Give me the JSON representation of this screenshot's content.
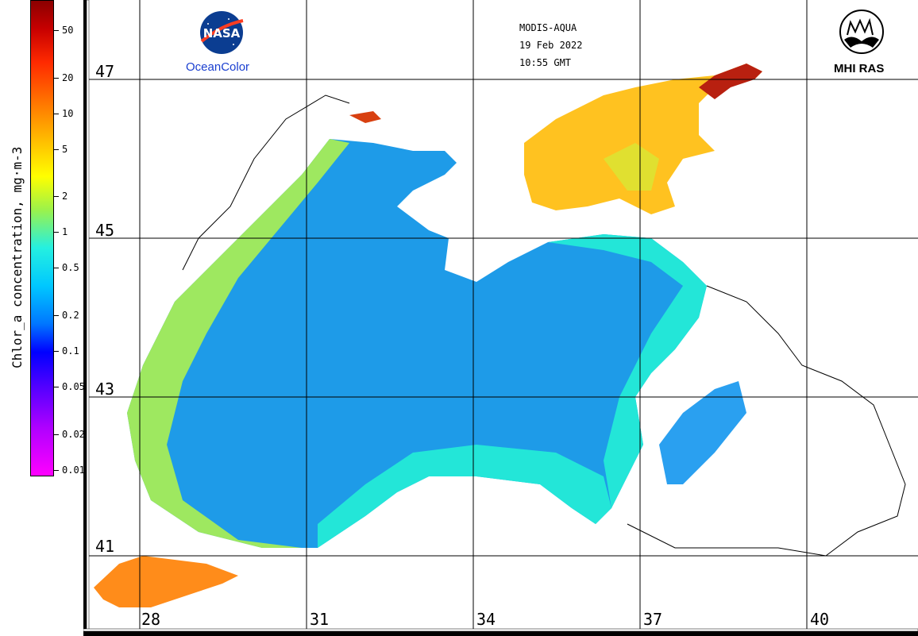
{
  "header": {
    "sensor": "MODIS-AQUA",
    "date": "19 Feb 2022",
    "time": "10:55 GMT"
  },
  "logos": {
    "nasa_text": "NASA",
    "oceancolor": "OceanColor",
    "mhi": "MHI RAS"
  },
  "colorbar": {
    "title": "Chlor_a concentration, mg·m-3",
    "ticks": [
      {
        "label": "50",
        "value": 50
      },
      {
        "label": "20",
        "value": 20
      },
      {
        "label": "10",
        "value": 10
      },
      {
        "label": "5",
        "value": 5
      },
      {
        "label": "2",
        "value": 2
      },
      {
        "label": "1",
        "value": 1
      },
      {
        "label": "0.5",
        "value": 0.5
      },
      {
        "label": "0.2",
        "value": 0.2
      },
      {
        "label": "0.1",
        "value": 0.1
      },
      {
        "label": "0.05",
        "value": 0.05
      },
      {
        "label": "0.02",
        "value": 0.02
      },
      {
        "label": "0.01",
        "value": 0.01
      }
    ],
    "scale": "log",
    "range": [
      0.01,
      70
    ],
    "colors": [
      "#8b0000",
      "#ff2a00",
      "#ff7a00",
      "#ffff00",
      "#25f0e0",
      "#00c8ff",
      "#0077ff",
      "#0000ff",
      "#b000ff",
      "#ff00ff"
    ]
  },
  "grid": {
    "latitudes": [
      "47",
      "45",
      "43",
      "41"
    ],
    "longitudes": [
      "28",
      "31",
      "34",
      "37",
      "40"
    ]
  },
  "map_colors": {
    "deep_sea": "#1e9be8",
    "coastal": "#23e6d8",
    "shelf": "#b8f050",
    "azov": "#ffc220",
    "azov_high": "#d83010",
    "marmara": "#ff8c1a"
  }
}
